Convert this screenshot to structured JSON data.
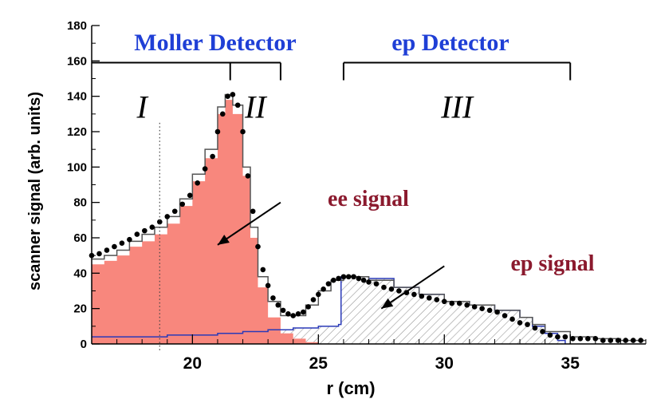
{
  "chart_data": {
    "type": "scatter",
    "title": "",
    "xlabel": "r (cm)",
    "ylabel": "scanner signal (arb. units)",
    "xlim": [
      16.0,
      38.0
    ],
    "ylim": [
      0,
      180
    ],
    "x_ticks": [
      20,
      25,
      30,
      35
    ],
    "y_ticks": [
      0,
      20,
      40,
      60,
      80,
      100,
      120,
      140,
      160,
      180
    ],
    "detector_labels": [
      {
        "text": "Moller Detector",
        "range": [
          16.0,
          23.5
        ],
        "color": "#1f3fd6"
      },
      {
        "text": "ep Detector",
        "range": [
          26.0,
          35.0
        ],
        "color": "#1f3fd6"
      }
    ],
    "regions": [
      {
        "label": "I",
        "x": 18.0
      },
      {
        "label": "II",
        "x": 22.5
      },
      {
        "label": "III",
        "x": 30.5
      }
    ],
    "divider_x": 18.7,
    "annotations": [
      {
        "text": "ee signal",
        "color": "#8b1a2e",
        "arrow_from": [
          23.5,
          80
        ],
        "arrow_to": [
          21.0,
          56
        ]
      },
      {
        "text": "ep signal",
        "color": "#8b1a2e",
        "arrow_from": [
          30.0,
          44
        ],
        "arrow_to": [
          27.5,
          20
        ]
      }
    ],
    "series": [
      {
        "kind": "ee",
        "color": "#f8877d",
        "x": [
          16.0,
          16.5,
          17.0,
          17.5,
          18.0,
          18.5,
          19.0,
          19.5,
          20.0,
          20.5,
          21.0,
          21.3,
          21.6,
          22.0,
          22.3,
          22.6,
          23.0,
          23.5,
          24.0,
          24.5,
          25.0
        ],
        "y": [
          45,
          47,
          50,
          55,
          58,
          62,
          68,
          78,
          92,
          105,
          130,
          138,
          130,
          95,
          60,
          32,
          15,
          6,
          3,
          1,
          0
        ]
      },
      {
        "kind": "ep",
        "color": "#2a3ab8",
        "x": [
          16.0,
          17.0,
          18.0,
          19.0,
          20.0,
          21.0,
          22.0,
          23.0,
          24.0,
          25.0,
          25.8,
          25.9,
          26.5,
          27.0,
          28.0,
          29.0,
          30.0,
          31.0,
          32.0,
          33.0,
          33.5,
          34.0,
          34.5,
          34.8
        ],
        "y": [
          4,
          4,
          4,
          5,
          5,
          6,
          7,
          8,
          9,
          10,
          11,
          38,
          38,
          37,
          32,
          28,
          24,
          22,
          19,
          15,
          10,
          6,
          2,
          0
        ]
      },
      {
        "kind": "total",
        "color": "#555555",
        "x": [
          16.0,
          16.5,
          17.0,
          17.5,
          18.0,
          18.5,
          19.0,
          19.5,
          20.0,
          20.5,
          21.0,
          21.3,
          21.6,
          22.0,
          22.3,
          22.6,
          23.0,
          23.5,
          24.0,
          24.5,
          25.0,
          25.5,
          26.0,
          27.0,
          28.0,
          29.0,
          30.0,
          31.0,
          32.0,
          33.0,
          33.5,
          34.0,
          35.0,
          36.0,
          37.0,
          38.0
        ],
        "y": [
          48,
          50,
          53,
          58,
          62,
          66,
          72,
          82,
          96,
          110,
          134,
          141,
          135,
          100,
          66,
          38,
          24,
          16,
          16,
          22,
          30,
          36,
          38,
          36,
          32,
          28,
          24,
          22,
          19,
          15,
          11,
          7,
          4,
          3,
          2,
          2
        ]
      },
      {
        "kind": "data",
        "color": "#000000",
        "x": [
          16.0,
          16.3,
          16.6,
          16.9,
          17.2,
          17.5,
          17.8,
          18.1,
          18.4,
          18.7,
          19.0,
          19.3,
          19.6,
          19.9,
          20.2,
          20.5,
          20.8,
          21.0,
          21.2,
          21.4,
          21.6,
          21.8,
          22.0,
          22.2,
          22.4,
          22.6,
          22.8,
          23.0,
          23.2,
          23.4,
          23.6,
          23.8,
          24.0,
          24.2,
          24.4,
          24.6,
          24.8,
          25.0,
          25.2,
          25.4,
          25.6,
          25.8,
          26.0,
          26.2,
          26.4,
          26.6,
          26.8,
          27.0,
          27.3,
          27.6,
          27.9,
          28.2,
          28.5,
          28.8,
          29.1,
          29.4,
          29.7,
          30.0,
          30.3,
          30.6,
          30.9,
          31.2,
          31.5,
          31.8,
          32.1,
          32.4,
          32.7,
          33.0,
          33.3,
          33.6,
          33.9,
          34.2,
          34.5,
          34.8,
          35.1,
          35.4,
          35.7,
          36.0,
          36.3,
          36.6,
          36.9,
          37.2,
          37.5,
          37.8
        ],
        "y": [
          50,
          51,
          53,
          55,
          57,
          59,
          62,
          64,
          66,
          69,
          72,
          75,
          79,
          84,
          91,
          99,
          106,
          120,
          130,
          140,
          141,
          135,
          120,
          95,
          75,
          55,
          42,
          33,
          26,
          22,
          19,
          17,
          16,
          17,
          18,
          21,
          25,
          28,
          31,
          34,
          36,
          37,
          38,
          38,
          38,
          37,
          36,
          35,
          34,
          32,
          31,
          30,
          29,
          28,
          27,
          26,
          25,
          24,
          23,
          23,
          22,
          21,
          20,
          19,
          18,
          16,
          14,
          12,
          11,
          9,
          7,
          5,
          4,
          4,
          3,
          3,
          3,
          3,
          2,
          2,
          2,
          2,
          2,
          2
        ]
      }
    ]
  }
}
